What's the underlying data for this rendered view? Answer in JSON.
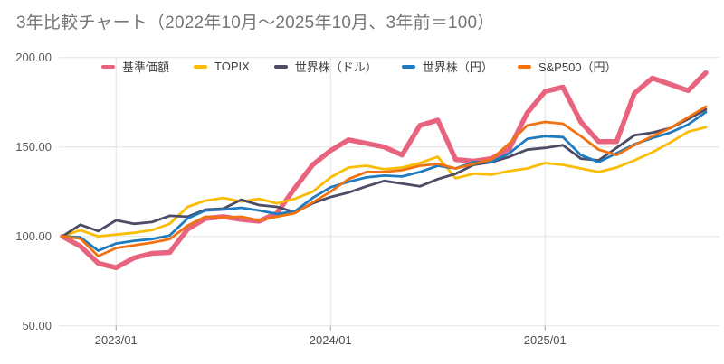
{
  "header": {
    "title": "3年比較チャート（2022年10月～2025年10月、3年前＝100）"
  },
  "chart_data": {
    "type": "line",
    "title": "3年比較チャート（2022年10月～2025年10月、3年前＝100）",
    "legend_position": "top",
    "grid": true,
    "background": "#ffffff",
    "gridline_color": "#e3e3e3",
    "tick_color": "#9e9e9e",
    "x": [
      "2022/10",
      "2022/11",
      "2022/12",
      "2023/01",
      "2023/02",
      "2023/03",
      "2023/04",
      "2023/05",
      "2023/06",
      "2023/07",
      "2023/08",
      "2023/09",
      "2023/10",
      "2023/11",
      "2023/12",
      "2024/01",
      "2024/02",
      "2024/03",
      "2024/04",
      "2024/05",
      "2024/06",
      "2024/07",
      "2024/08",
      "2024/09",
      "2024/10",
      "2024/11",
      "2024/12",
      "2025/01",
      "2025/02",
      "2025/03",
      "2025/04",
      "2025/05",
      "2025/06",
      "2025/07",
      "2025/08",
      "2025/09",
      "2025/10"
    ],
    "series": [
      {
        "name": "基準価額",
        "color": "#e8647e",
        "stroke_width": 5.5,
        "values": [
          100,
          94.5,
          85,
          82.5,
          88,
          90.5,
          91,
          104,
          110,
          111,
          109.5,
          108.5,
          113,
          127,
          140,
          148,
          154,
          152,
          150,
          145.5,
          162,
          165,
          143,
          142,
          143.5,
          149,
          169,
          181,
          183.5,
          164,
          153,
          153,
          180,
          188.5,
          185,
          181.5,
          191.5
        ]
      },
      {
        "name": "TOPIX",
        "color": "#fbbc04",
        "stroke_width": 2.8,
        "values": [
          100,
          103.5,
          100,
          101,
          102,
          103.5,
          107,
          116.5,
          120,
          121.5,
          119.5,
          121,
          118.5,
          121,
          125,
          133,
          138.5,
          139.5,
          137.5,
          138.5,
          141,
          144.5,
          132.5,
          135,
          134.5,
          136.5,
          138,
          141,
          140,
          138,
          136,
          138.5,
          142.5,
          147,
          152.5,
          158.5,
          161
        ]
      },
      {
        "name": "世界株（ドル）",
        "color": "#4c4c66",
        "stroke_width": 2.8,
        "values": [
          100,
          106.5,
          103,
          109,
          107,
          108,
          111.5,
          111,
          115,
          115.5,
          120.5,
          117.5,
          116.5,
          113.5,
          118.5,
          122,
          124.5,
          128,
          131,
          129.5,
          128,
          132,
          135,
          140,
          141.5,
          144.5,
          148.5,
          149.5,
          151,
          143.5,
          142.5,
          149.5,
          156.5,
          158,
          160.5,
          165.5,
          171
        ]
      },
      {
        "name": "世界株（円）",
        "color": "#1f7bbf",
        "stroke_width": 2.8,
        "values": [
          100,
          99.5,
          92,
          96,
          97.5,
          98.5,
          100.5,
          110,
          114.5,
          115,
          116,
          114.5,
          112.5,
          114,
          121.5,
          127.5,
          130.5,
          133,
          134,
          133.5,
          136,
          139.5,
          138,
          141.5,
          141.5,
          146.5,
          154.5,
          156,
          155.5,
          145.5,
          141.5,
          146.5,
          151.5,
          155,
          158,
          162.5,
          169.5
        ]
      },
      {
        "name": "S&P500（円）",
        "color": "#f1720e",
        "stroke_width": 2.8,
        "values": [
          100,
          98.8,
          89,
          93.5,
          95,
          96.5,
          98.5,
          106,
          111,
          110.5,
          111,
          109,
          111,
          113,
          119,
          125,
          132,
          136,
          136,
          137,
          139.5,
          140.5,
          138,
          140.5,
          143,
          152,
          162,
          164,
          163,
          156,
          148.5,
          145.5,
          151,
          156,
          160.5,
          166.5,
          172.5
        ]
      }
    ],
    "y_axis": {
      "min": 50,
      "max": 200,
      "ticks": [
        {
          "value": 200,
          "label": "200.00"
        },
        {
          "value": 150,
          "label": "150.00"
        },
        {
          "value": 100,
          "label": "100.00"
        },
        {
          "value": 50,
          "label": "50.00"
        }
      ]
    },
    "x_axis": {
      "ticks": [
        {
          "label": "2023/01",
          "index": 3
        },
        {
          "label": "2024/01",
          "index": 15
        },
        {
          "label": "2025/01",
          "index": 27
        }
      ]
    }
  }
}
